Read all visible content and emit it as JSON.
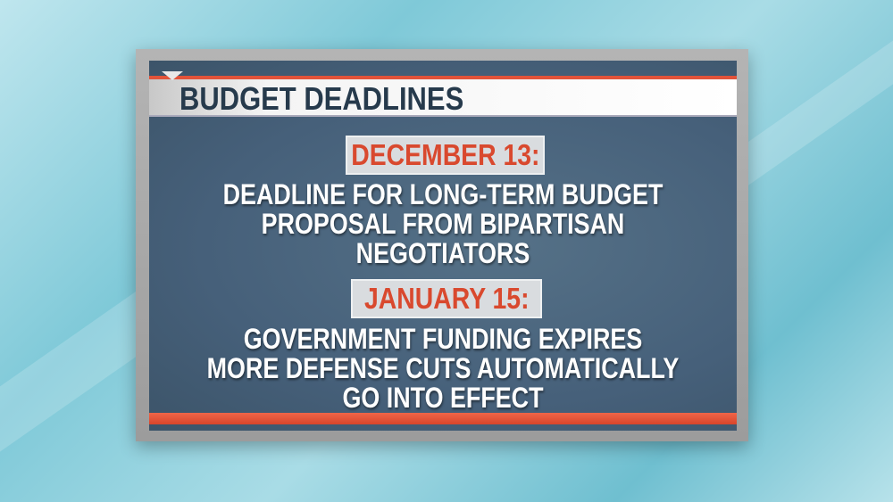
{
  "graphic": {
    "title": "BUDGET DEADLINES",
    "entries": [
      {
        "date": "DECEMBER 13:",
        "lines": [
          "DEADLINE FOR LONG-TERM BUDGET",
          "PROPOSAL FROM BIPARTISAN",
          "NEGOTIATORS"
        ]
      },
      {
        "date": "JANUARY 15:",
        "lines": [
          "GOVERNMENT FUNDING EXPIRES",
          "MORE DEFENSE CUTS AUTOMATICALLY",
          "GO INTO EFFECT"
        ]
      }
    ],
    "colors": {
      "accent": "#e2533a",
      "date_text": "#d9492e",
      "panel": "#46607a",
      "title_text": "#263a4c"
    }
  }
}
